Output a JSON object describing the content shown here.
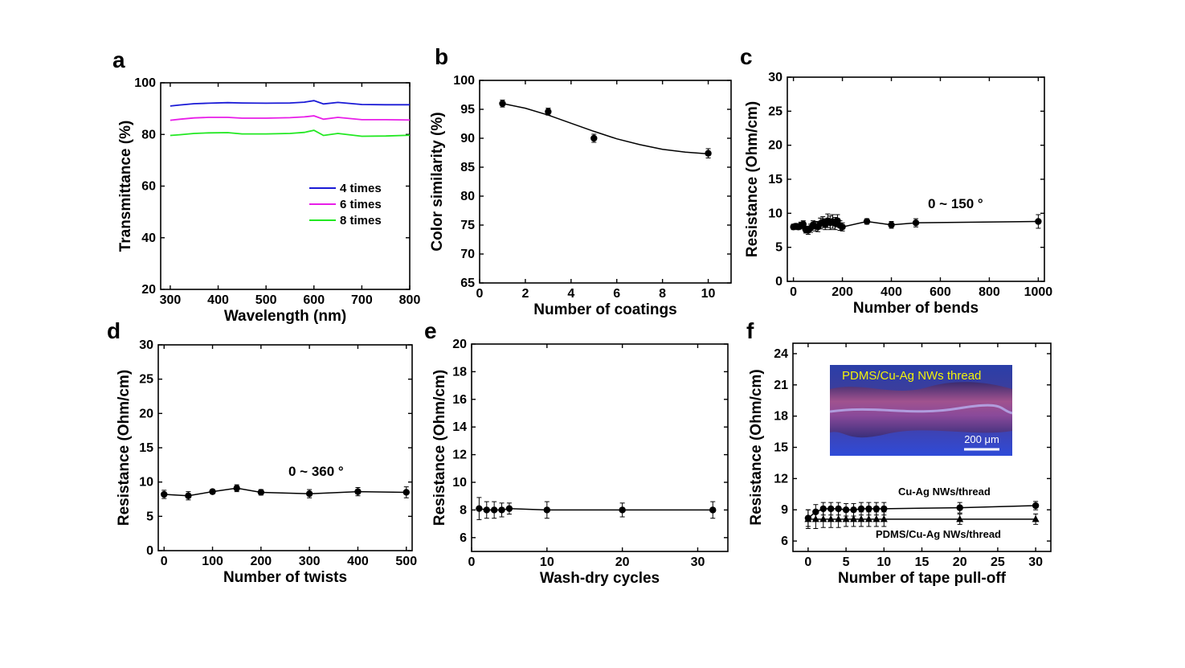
{
  "chart_data": [
    {
      "panel": "a",
      "type": "line",
      "xlabel": "Wavelength (nm)",
      "ylabel": "Transmittance (%)",
      "xlim": [
        280,
        800
      ],
      "ylim": [
        20,
        100
      ],
      "xticks": [
        300,
        400,
        500,
        600,
        700,
        800
      ],
      "xtick_labels": [
        "300",
        "400",
        "500",
        "600",
        "700",
        "800"
      ],
      "yticks": [
        20,
        40,
        60,
        80,
        100
      ],
      "ytick_labels": [
        "20",
        "40",
        "60",
        "80",
        "100"
      ],
      "legend_position": "lower-right",
      "series": [
        {
          "name": "4 times",
          "color": "#1a1ad6",
          "x": [
            300,
            320,
            350,
            380,
            420,
            450,
            500,
            550,
            580,
            600,
            620,
            650,
            700,
            750,
            800
          ],
          "y": [
            91,
            91.4,
            91.9,
            92.1,
            92.3,
            92.2,
            92.1,
            92.2,
            92.5,
            93.1,
            91.8,
            92.4,
            91.6,
            91.5,
            91.5
          ]
        },
        {
          "name": "6 times",
          "color": "#e81ee8",
          "x": [
            300,
            320,
            350,
            380,
            420,
            450,
            500,
            550,
            580,
            600,
            620,
            650,
            700,
            750,
            800
          ],
          "y": [
            85.5,
            85.9,
            86.4,
            86.6,
            86.6,
            86.3,
            86.3,
            86.5,
            86.8,
            87.2,
            85.9,
            86.6,
            85.7,
            85.7,
            85.6
          ]
        },
        {
          "name": "8 times",
          "color": "#22e822",
          "x": [
            300,
            320,
            350,
            380,
            420,
            450,
            500,
            550,
            580,
            600,
            620,
            650,
            700,
            750,
            800
          ],
          "y": [
            79.6,
            79.9,
            80.4,
            80.6,
            80.7,
            80.2,
            80.2,
            80.4,
            80.8,
            81.6,
            79.6,
            80.4,
            79.3,
            79.4,
            79.7
          ]
        }
      ]
    },
    {
      "panel": "b",
      "type": "scatter",
      "xlabel": "Number of coatings",
      "ylabel": "Color similarity (%)",
      "xlim": [
        0,
        11
      ],
      "ylim": [
        65,
        100
      ],
      "xticks": [
        0,
        2,
        4,
        6,
        8,
        10
      ],
      "xtick_labels": [
        "0",
        "2",
        "4",
        "6",
        "8",
        "10"
      ],
      "yticks": [
        65,
        70,
        75,
        80,
        85,
        90,
        95,
        100
      ],
      "ytick_labels": [
        "65",
        "70",
        "75",
        "80",
        "85",
        "90",
        "95",
        "100"
      ],
      "series": [
        {
          "x": [
            1,
            3,
            5,
            10
          ],
          "y": [
            96,
            94.6,
            90,
            87.4
          ],
          "err": [
            0.6,
            0.6,
            0.7,
            0.8
          ],
          "marker": "circle",
          "fit_x": [
            1,
            2,
            3,
            4,
            5,
            6,
            7,
            8,
            9,
            10
          ],
          "fit_y": [
            96,
            95.2,
            94.0,
            92.6,
            91.2,
            89.9,
            88.9,
            88.1,
            87.6,
            87.3
          ]
        }
      ]
    },
    {
      "panel": "c",
      "type": "line",
      "xlabel": "Number of bends",
      "ylabel": "Resistance (Ohm/cm)",
      "xlim": [
        -25,
        1025
      ],
      "ylim": [
        0,
        30
      ],
      "xticks": [
        0,
        200,
        400,
        600,
        800,
        1000
      ],
      "xtick_labels": [
        "0",
        "200",
        "400",
        "600",
        "800",
        "1000"
      ],
      "yticks": [
        0,
        5,
        10,
        15,
        20,
        25,
        30
      ],
      "ytick_labels": [
        "0",
        "5",
        "10",
        "15",
        "20",
        "25",
        "30"
      ],
      "annotation": "0 ~  150 °",
      "series": [
        {
          "x": [
            0,
            10,
            20,
            30,
            40,
            50,
            60,
            70,
            80,
            90,
            100,
            110,
            120,
            130,
            140,
            150,
            160,
            170,
            180,
            190,
            200,
            300,
            400,
            500,
            1000
          ],
          "y": [
            8,
            8.1,
            8.0,
            8.2,
            8.4,
            7.6,
            7.5,
            7.8,
            8.3,
            8.1,
            8.0,
            8.5,
            8.7,
            8.4,
            8.9,
            8.6,
            8.8,
            8.5,
            8.9,
            8.2,
            8.0,
            8.8,
            8.3,
            8.6,
            8.8
          ],
          "err": [
            0.4,
            0.4,
            0.4,
            0.5,
            0.5,
            0.5,
            0.6,
            0.6,
            0.6,
            0.7,
            0.7,
            0.8,
            0.8,
            0.8,
            1.0,
            1.0,
            1.0,
            0.9,
            0.9,
            0.7,
            0.6,
            0.4,
            0.5,
            0.6,
            1.0
          ],
          "marker": "circle"
        }
      ]
    },
    {
      "panel": "d",
      "type": "line",
      "xlabel": "Number of twists",
      "ylabel": "Resistance (Ohm/cm)",
      "xlim": [
        -12,
        512
      ],
      "ylim": [
        0,
        30
      ],
      "xticks": [
        0,
        100,
        200,
        300,
        400,
        500
      ],
      "xtick_labels": [
        "0",
        "100",
        "200",
        "300",
        "400",
        "500"
      ],
      "yticks": [
        0,
        5,
        10,
        15,
        20,
        25,
        30
      ],
      "ytick_labels": [
        "0",
        "5",
        "10",
        "15",
        "20",
        "25",
        "30"
      ],
      "annotation": "0 ~  360 °",
      "series": [
        {
          "x": [
            0,
            50,
            100,
            150,
            200,
            300,
            400,
            500
          ],
          "y": [
            8.2,
            8.0,
            8.6,
            9.1,
            8.5,
            8.3,
            8.6,
            8.5
          ],
          "err": [
            0.6,
            0.6,
            0.3,
            0.5,
            0.4,
            0.6,
            0.6,
            0.8
          ],
          "marker": "circle"
        }
      ]
    },
    {
      "panel": "e",
      "type": "line",
      "xlabel": "Wash-dry cycles",
      "ylabel": "Resistance (Ohm/cm)",
      "xlim": [
        0,
        34
      ],
      "ylim": [
        5,
        20
      ],
      "xticks": [
        0,
        10,
        20,
        30
      ],
      "xtick_labels": [
        "0",
        "10",
        "20",
        "30"
      ],
      "yticks": [
        6,
        8,
        10,
        12,
        14,
        16,
        18,
        20
      ],
      "ytick_labels": [
        "6",
        "8",
        "10",
        "12",
        "14",
        "16",
        "18",
        "20"
      ],
      "series": [
        {
          "x": [
            1,
            2,
            3,
            4,
            5,
            10,
            20,
            32
          ],
          "y": [
            8.1,
            8.0,
            8.0,
            8.0,
            8.1,
            8.0,
            8.0,
            8.0
          ],
          "err": [
            0.8,
            0.6,
            0.6,
            0.5,
            0.4,
            0.6,
            0.5,
            0.6
          ],
          "marker": "circle"
        }
      ]
    },
    {
      "panel": "f",
      "type": "line",
      "xlabel": "Number of tape pull-off",
      "ylabel": "Resistance (Ohm/cm)",
      "xlim": [
        -2,
        32
      ],
      "ylim": [
        5,
        25
      ],
      "xticks": [
        0,
        5,
        10,
        15,
        20,
        25,
        30
      ],
      "xtick_labels": [
        "0",
        "5",
        "10",
        "15",
        "20",
        "25",
        "30"
      ],
      "yticks": [
        6,
        9,
        12,
        15,
        18,
        21,
        24
      ],
      "ytick_labels": [
        "6",
        "9",
        "12",
        "15",
        "18",
        "21",
        "24"
      ],
      "inset": {
        "title": "PDMS/Cu-Ag NWs thread",
        "scale_bar": "200 μm"
      },
      "series": [
        {
          "name": "Cu-Ag NWs/thread",
          "marker": "circle",
          "x": [
            0,
            1,
            2,
            3,
            4,
            5,
            6,
            7,
            8,
            9,
            10,
            20,
            30
          ],
          "y": [
            8.2,
            8.8,
            9.1,
            9.1,
            9.1,
            9.0,
            9.0,
            9.1,
            9.1,
            9.1,
            9.1,
            9.2,
            9.4
          ],
          "err": [
            0.8,
            0.7,
            0.6,
            0.6,
            0.6,
            0.6,
            0.6,
            0.6,
            0.6,
            0.6,
            0.6,
            0.5,
            0.4
          ]
        },
        {
          "name": "PDMS/Cu-Ag NWs/thread",
          "marker": "triangle",
          "x": [
            0,
            1,
            2,
            3,
            4,
            5,
            6,
            7,
            8,
            9,
            10,
            20,
            30
          ],
          "y": [
            8.1,
            8.1,
            8.1,
            8.1,
            8.1,
            8.1,
            8.1,
            8.1,
            8.1,
            8.1,
            8.1,
            8.1,
            8.1
          ],
          "err": [
            0.9,
            0.9,
            0.8,
            0.8,
            0.8,
            0.7,
            0.7,
            0.7,
            0.7,
            0.7,
            0.7,
            0.5,
            0.5
          ]
        }
      ]
    }
  ]
}
